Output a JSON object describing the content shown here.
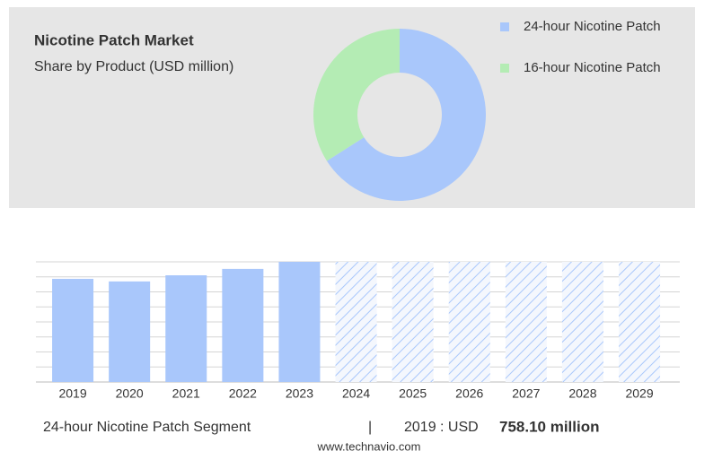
{
  "chart_data": [
    {
      "type": "pie",
      "donut": true,
      "title": "Nicotine Patch Market",
      "subtitle": "Share by Product (USD million)",
      "categories": [
        "24-hour Nicotine Patch",
        "16-hour Nicotine Patch"
      ],
      "values": [
        66,
        34
      ],
      "colors": [
        "#a9c7fb",
        "#b4ecb4"
      ],
      "legend": "top-right"
    },
    {
      "type": "bar",
      "categories": [
        "2019",
        "2020",
        "2021",
        "2022",
        "2023",
        "2024",
        "2025",
        "2026",
        "2027",
        "2028",
        "2029"
      ],
      "values": [
        758.1,
        739,
        784,
        831,
        883,
        null,
        null,
        null,
        null,
        null,
        null
      ],
      "color": "#a9c7fb",
      "ylim": [
        0,
        883
      ],
      "grid": true
    }
  ],
  "footer": {
    "segment": "24-hour Nicotine Patch Segment",
    "separator": "|",
    "year_prefix": "2019 : USD",
    "value": "758.10 million"
  },
  "source": "www.technavio.com"
}
